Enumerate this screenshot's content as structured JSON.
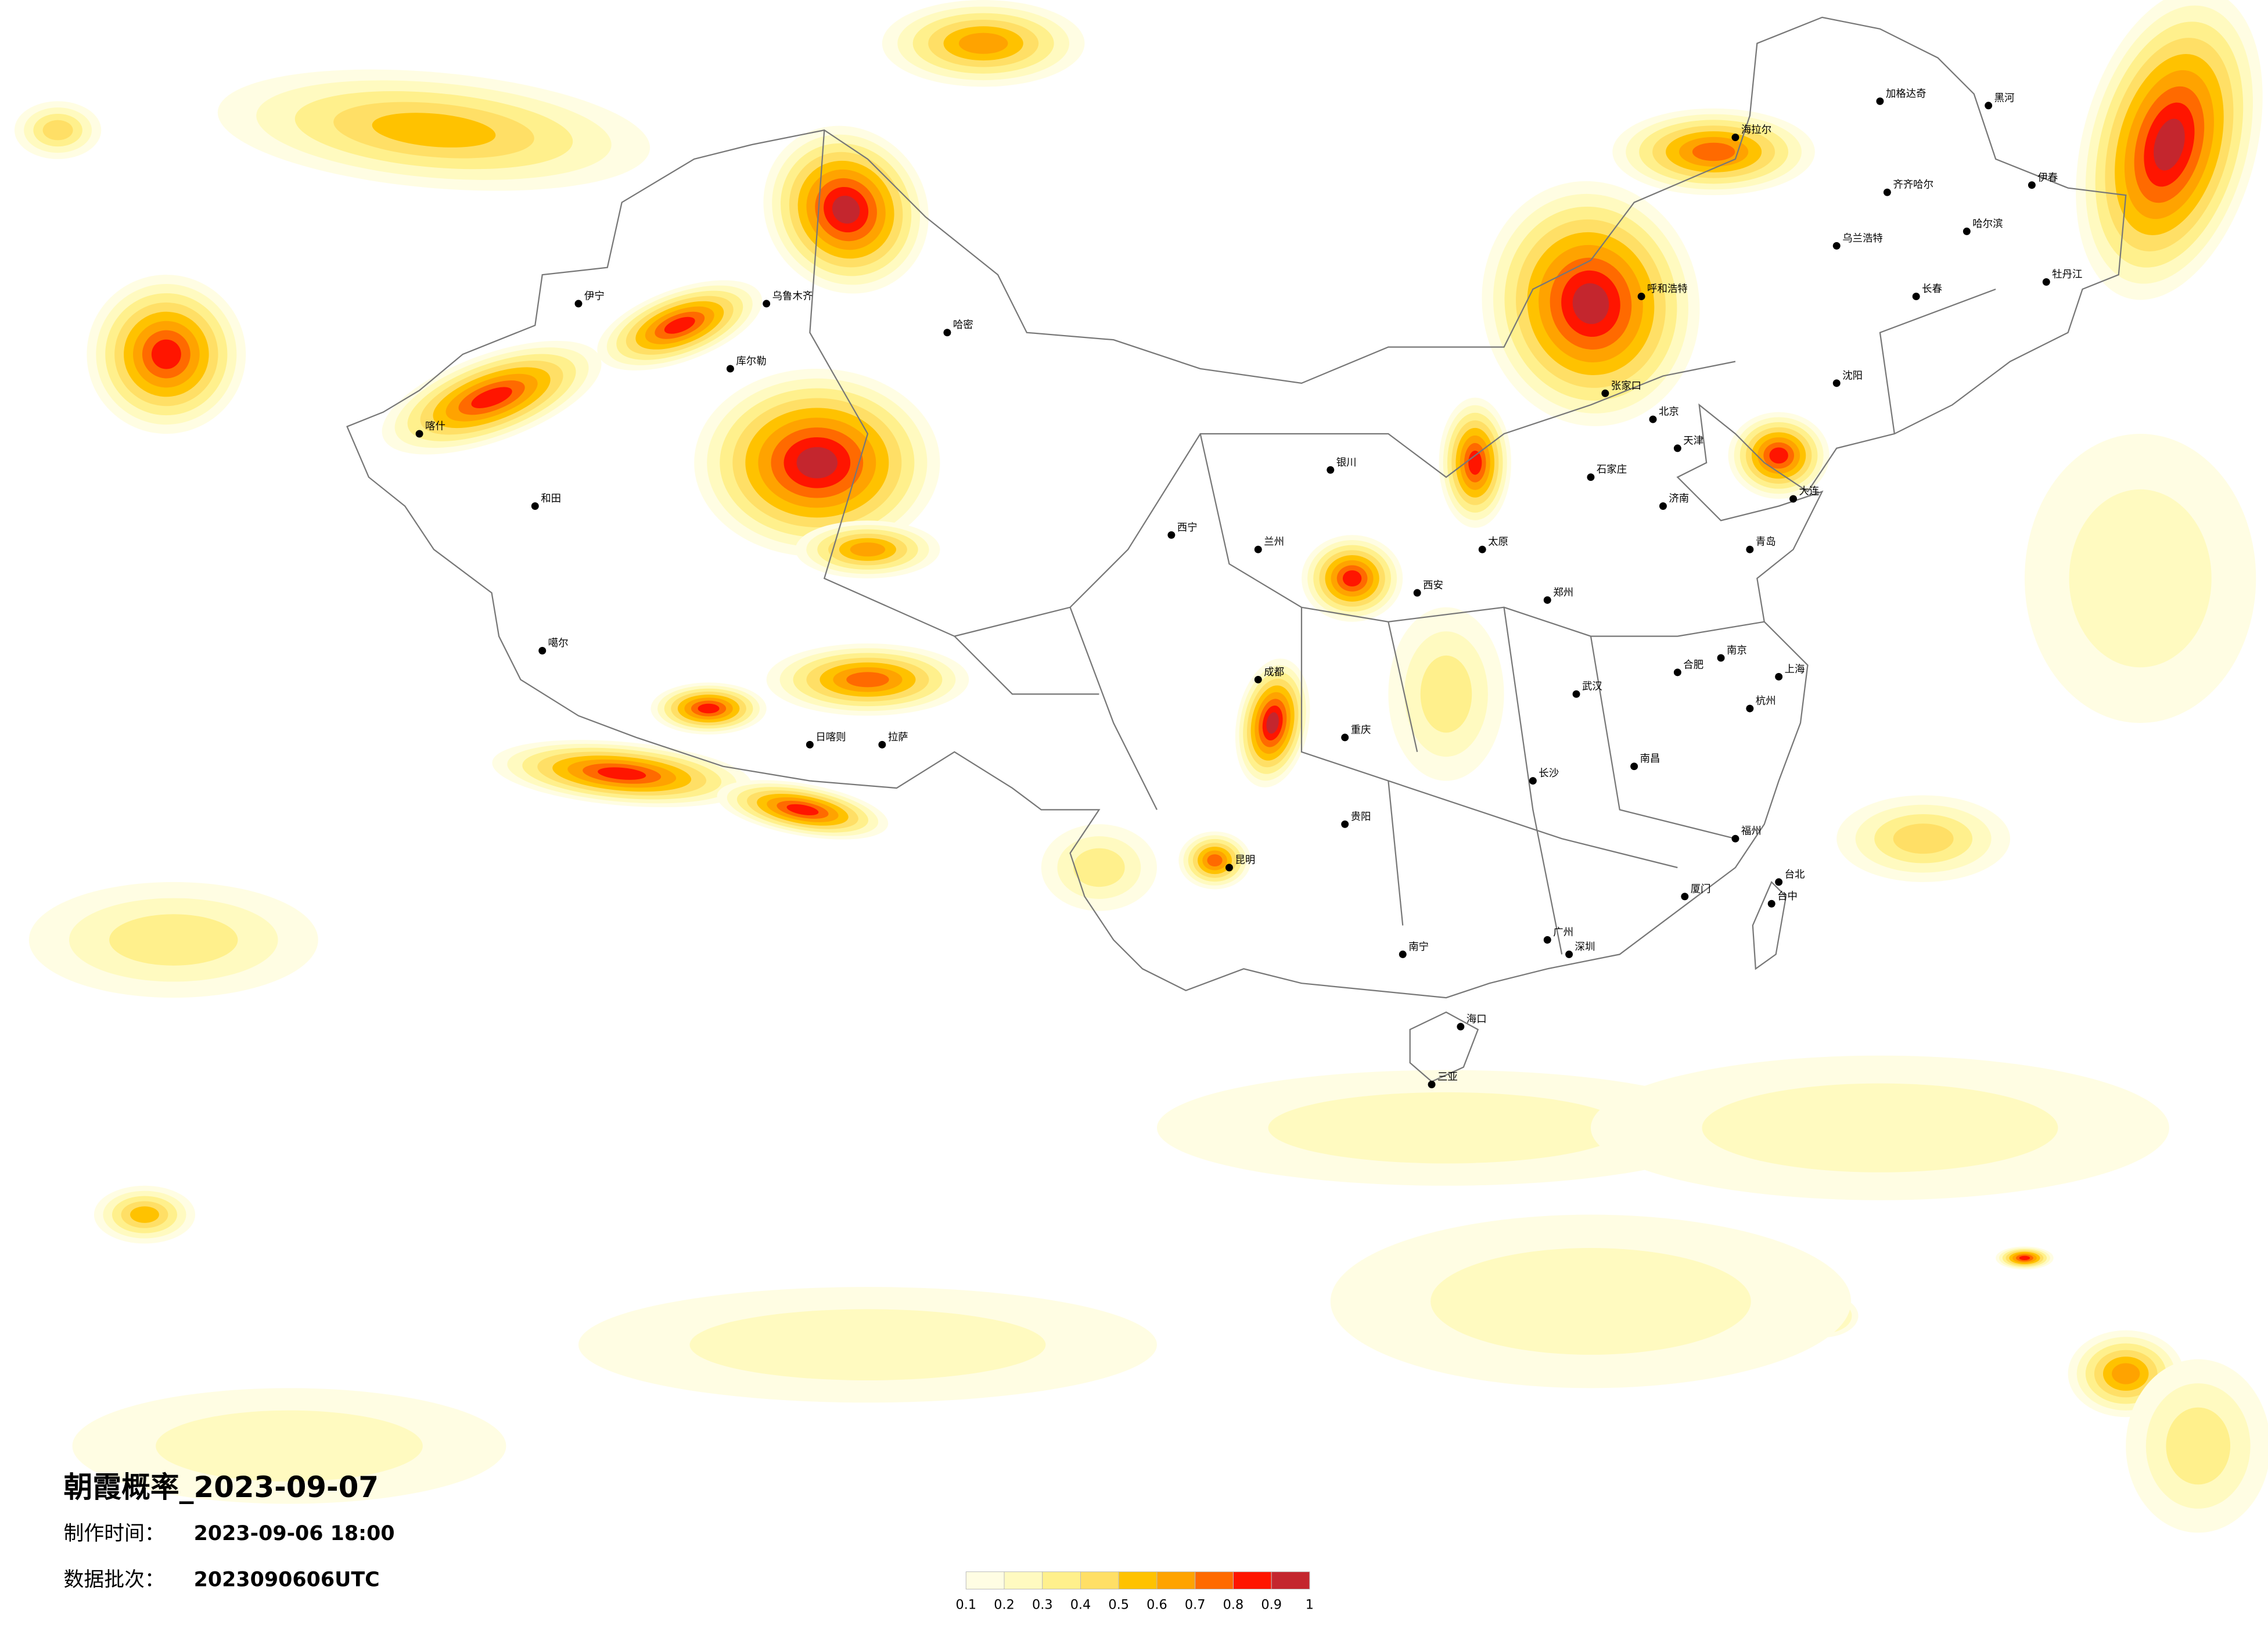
{
  "header": {
    "title": "朝霞概率_2023-09-07"
  },
  "info": [
    {
      "label": "制作时间：",
      "value": "2023-09-06 18:00"
    },
    {
      "label": "数据批次：",
      "value": "2023090606UTC"
    }
  ],
  "colorbar": {
    "colors": [
      "#fffde3",
      "#fffac0",
      "#fff08c",
      "#ffdf66",
      "#ffc200",
      "#ffa300",
      "#ff6a00",
      "#ff1500",
      "#c4262e"
    ],
    "ticks": [
      0.1,
      0.2,
      0.3,
      0.4,
      0.5,
      0.6,
      0.7,
      0.8,
      0.9,
      1
    ]
  },
  "cities": [
    "北京",
    "天津",
    "上海",
    "石家庄",
    "太原",
    "郑州",
    "济南",
    "南京",
    "杭州",
    "合肥",
    "武汉",
    "长沙",
    "南昌",
    "福州",
    "广州",
    "南宁",
    "昆明",
    "贵阳",
    "成都",
    "重庆",
    "西安",
    "兰州",
    "西宁",
    "银川",
    "呼和浩特",
    "哈尔滨",
    "长春",
    "沈阳",
    "拉萨",
    "乌鲁木齐",
    "海口",
    "台北",
    "台中",
    "和田",
    "喀什",
    "伊宁",
    "哈密",
    "库尔勒",
    "加格达奇",
    "黑河",
    "伊春",
    "海拉尔",
    "齐齐哈尔",
    "牡丹江",
    "大连",
    "青岛",
    "厦门",
    "深圳",
    "三亚",
    "日喀则",
    "噶尔",
    "张家口",
    "乌兰浩特"
  ]
}
